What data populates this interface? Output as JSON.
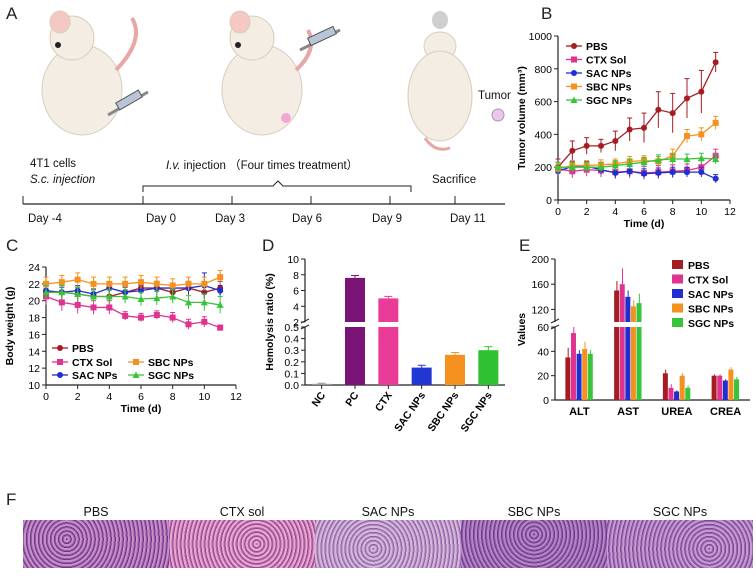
{
  "panels": {
    "A": "A",
    "B": "B",
    "C": "C",
    "D": "D",
    "E": "E",
    "F": "F"
  },
  "timeline": {
    "cells_label": "4T1 cells",
    "sc_label": "S.c. injection",
    "iv_prefix": "I.v.",
    "iv_suffix": " injection  （Four times treatment）",
    "sacrifice": "Sacrifice",
    "tumor": "Tumor",
    "days": [
      "Day -4",
      "Day 0",
      "Day 3",
      "Day 6",
      "Day 9",
      "Day 11"
    ]
  },
  "colors": {
    "PBS": "#a51d23",
    "CTX Sol": "#e0338f",
    "SAC NPs": "#1f2fd0",
    "SBC NPs": "#f5921f",
    "SGC NPs": "#37c43b",
    "hemo_NC": "#999999",
    "hemo_PC": "#7a1477",
    "hemo_CTX": "#ea3c96",
    "hemo_SAC": "#2236d4",
    "hemo_SBC": "#f5921f",
    "hemo_SGC": "#2fc12f"
  },
  "chart_data": [
    {
      "id": "B",
      "type": "line",
      "title": "",
      "xlabel": "Time (d)",
      "ylabel": "Tumor volume (mm³)",
      "xlim": [
        0,
        12
      ],
      "ylim": [
        0,
        1000
      ],
      "xticks": [
        0,
        2,
        4,
        6,
        8,
        10,
        12
      ],
      "yticks": [
        0,
        200,
        400,
        600,
        800,
        1000
      ],
      "x": [
        0,
        1,
        2,
        3,
        4,
        5,
        6,
        7,
        8,
        9,
        10,
        11
      ],
      "series": [
        {
          "name": "PBS",
          "values": [
            200,
            300,
            330,
            330,
            360,
            430,
            440,
            550,
            530,
            620,
            660,
            840
          ],
          "err": [
            50,
            60,
            50,
            40,
            60,
            70,
            90,
            110,
            120,
            120,
            130,
            60
          ]
        },
        {
          "name": "CTX Sol",
          "values": [
            190,
            175,
            185,
            180,
            170,
            175,
            165,
            170,
            175,
            180,
            200,
            270
          ],
          "err": [
            40,
            40,
            40,
            40,
            40,
            40,
            40,
            40,
            40,
            40,
            40,
            40
          ]
        },
        {
          "name": "SAC NPs",
          "values": [
            175,
            205,
            205,
            185,
            165,
            175,
            160,
            165,
            170,
            170,
            170,
            130
          ],
          "err": [
            30,
            30,
            30,
            30,
            30,
            30,
            30,
            30,
            30,
            30,
            30,
            25
          ]
        },
        {
          "name": "SBC NPs",
          "values": [
            190,
            210,
            210,
            215,
            220,
            235,
            240,
            235,
            270,
            390,
            400,
            470
          ],
          "err": [
            30,
            30,
            30,
            30,
            30,
            30,
            30,
            30,
            40,
            40,
            40,
            40
          ]
        },
        {
          "name": "SGC NPs",
          "values": [
            200,
            200,
            200,
            200,
            210,
            220,
            230,
            245,
            250,
            250,
            255,
            250
          ],
          "err": [
            30,
            30,
            30,
            30,
            30,
            30,
            30,
            30,
            30,
            30,
            30,
            30
          ]
        }
      ],
      "legend": "top-left"
    },
    {
      "id": "C",
      "type": "line",
      "xlabel": "Time (d)",
      "ylabel": "Body weight (g)",
      "xlim": [
        0,
        12
      ],
      "ylim": [
        10,
        24
      ],
      "xticks": [
        0,
        2,
        4,
        6,
        8,
        10,
        12
      ],
      "yticks": [
        10,
        12,
        14,
        16,
        18,
        20,
        22,
        24
      ],
      "x": [
        0,
        1,
        2,
        3,
        4,
        5,
        6,
        7,
        8,
        9,
        10,
        11
      ],
      "series": [
        {
          "name": "PBS",
          "values": [
            21.0,
            21.0,
            20.8,
            20.5,
            20.5,
            21.0,
            21.5,
            21.5,
            21.0,
            21.5,
            21.0,
            21.5
          ],
          "err": [
            0.8,
            0.8,
            0.8,
            0.8,
            0.8,
            0.8,
            0.8,
            0.8,
            0.8,
            0.8,
            0.8,
            0.8
          ]
        },
        {
          "name": "CTX Sol",
          "values": [
            20.5,
            19.8,
            19.5,
            19.2,
            19.2,
            18.2,
            18.0,
            18.3,
            18.0,
            17.2,
            17.5,
            16.8
          ],
          "err": [
            1.0,
            1.0,
            1.0,
            0.8,
            0.8,
            0.5,
            0.5,
            0.5,
            0.6,
            0.6,
            0.6,
            0.3
          ]
        },
        {
          "name": "SAC NPs",
          "values": [
            21.2,
            21.0,
            21.2,
            20.8,
            21.5,
            21.0,
            21.2,
            21.5,
            21.5,
            21.5,
            21.8,
            21.2
          ],
          "err": [
            0.6,
            0.6,
            0.6,
            0.6,
            0.6,
            0.6,
            0.6,
            0.6,
            0.6,
            0.6,
            1.5,
            0.6
          ]
        },
        {
          "name": "SBC NPs",
          "values": [
            22.0,
            22.2,
            22.5,
            22.0,
            22.0,
            22.0,
            22.2,
            22.0,
            21.8,
            22.0,
            22.0,
            22.8
          ],
          "err": [
            0.8,
            0.8,
            0.8,
            0.8,
            0.8,
            0.8,
            0.8,
            0.8,
            0.8,
            0.8,
            0.8,
            0.8
          ]
        },
        {
          "name": "SGC NPs",
          "values": [
            21.0,
            21.0,
            20.8,
            20.5,
            20.5,
            20.5,
            20.2,
            20.3,
            20.5,
            19.8,
            19.8,
            19.5
          ],
          "err": [
            0.8,
            0.8,
            0.8,
            0.8,
            0.8,
            0.8,
            0.8,
            0.8,
            0.8,
            0.8,
            1.0,
            1.0
          ]
        }
      ],
      "legend": "bottom-left"
    },
    {
      "id": "D",
      "type": "bar",
      "xlabel": "",
      "ylabel": "Hemolysis ratio (%)",
      "axis_break": [
        0.5,
        2
      ],
      "yticks_upper": [
        2,
        4,
        6,
        8,
        10
      ],
      "yticks_lower": [
        0.0,
        0.1,
        0.2,
        0.3,
        0.4,
        0.5
      ],
      "categories": [
        "NC",
        "PC",
        "CTX",
        "SAC NPs",
        "SBC NPs",
        "SGC NPs"
      ],
      "values": [
        0.01,
        7.6,
        5.0,
        0.15,
        0.26,
        0.3
      ],
      "err": [
        0.005,
        0.3,
        0.25,
        0.02,
        0.02,
        0.03
      ]
    },
    {
      "id": "E",
      "type": "bar",
      "xlabel": "",
      "ylabel": "Values",
      "axis_break": [
        60,
        100
      ],
      "yticks_upper": [
        120,
        160,
        200
      ],
      "yticks_lower": [
        0,
        20,
        40,
        60
      ],
      "categories": [
        "ALT",
        "AST",
        "UREA",
        "CREA"
      ],
      "series": [
        {
          "name": "PBS",
          "values": [
            35,
            150,
            22,
            20
          ],
          "err": [
            8,
            15,
            3,
            1
          ]
        },
        {
          "name": "CTX Sol",
          "values": [
            55,
            160,
            10,
            20
          ],
          "err": [
            5,
            25,
            3,
            1
          ]
        },
        {
          "name": "SAC NPs",
          "values": [
            38,
            140,
            7,
            16
          ],
          "err": [
            3,
            10,
            1,
            1
          ]
        },
        {
          "name": "SBC NPs",
          "values": [
            42,
            125,
            20,
            25
          ],
          "err": [
            6,
            10,
            2,
            2
          ]
        },
        {
          "name": "SGC NPs",
          "values": [
            38,
            130,
            10,
            17
          ],
          "err": [
            3,
            15,
            2,
            2
          ]
        }
      ],
      "legend": "top-right"
    }
  ],
  "histology": {
    "labels": [
      "PBS",
      "CTX sol",
      "SAC NPs",
      "SBC NPs",
      "SGC NPs"
    ]
  }
}
